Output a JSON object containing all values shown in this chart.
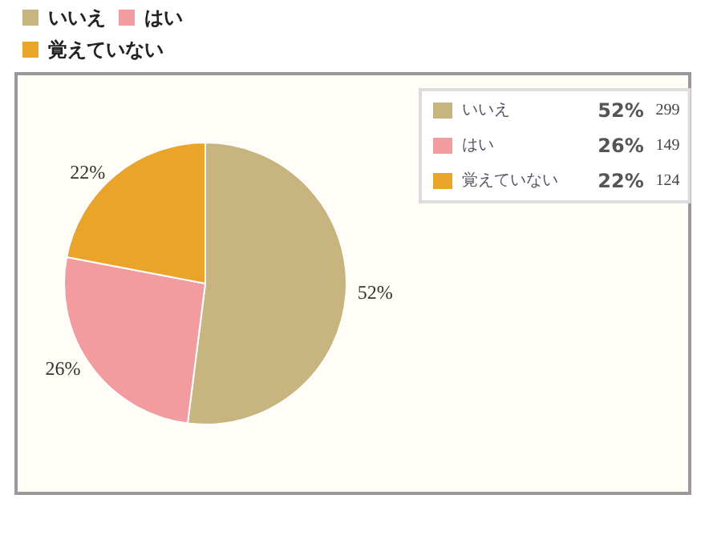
{
  "chart_data": {
    "type": "pie",
    "categories": [
      "いいえ",
      "はい",
      "覚えていない"
    ],
    "values": [
      52,
      26,
      22
    ],
    "colors": [
      "#c8b47e",
      "#f29ca0",
      "#eba42a"
    ],
    "value_labels": [
      "52%",
      "26%",
      "22%"
    ],
    "annotations": [
      "299",
      "149",
      "124"
    ],
    "legend": "top"
  }
}
